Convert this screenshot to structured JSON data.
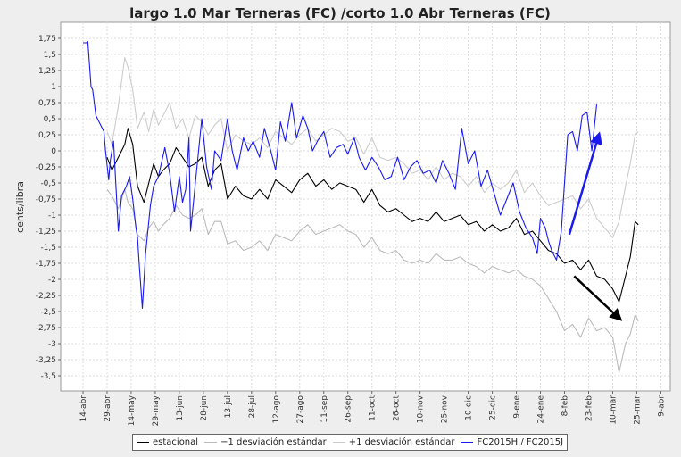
{
  "chart_data": {
    "type": "line",
    "title": "largo 1.0 Mar Terneras (FC) /corto 1.0 Abr Terneras (FC)",
    "xlabel": "",
    "ylabel": "cents/libra",
    "ylim": [
      -3.6,
      1.95
    ],
    "y_ticks": [
      1.75,
      1.5,
      1.25,
      1,
      0.75,
      0.5,
      0.25,
      0,
      -0.25,
      -0.5,
      -0.75,
      -1,
      -1.25,
      -1.5,
      -1.75,
      -2,
      -2.25,
      -2.5,
      -2.75,
      -3,
      -3.25,
      -3.5
    ],
    "y_tick_labels": [
      "1,75",
      "1,5",
      "1,25",
      "1",
      "0,75",
      "0,5",
      "0,25",
      "0",
      "-0,25",
      "-0,5",
      "-0,75",
      "-1",
      "-1,25",
      "-1,5",
      "-1,75",
      "-2",
      "-2,25",
      "-2,5",
      "-2,75",
      "-3",
      "-3,25",
      "-3,5"
    ],
    "xlim": [
      0,
      362
    ],
    "x_ticks": [
      {
        "label": "14-abr",
        "day": 0
      },
      {
        "label": "29-abr",
        "day": 15
      },
      {
        "label": "14-may",
        "day": 30
      },
      {
        "label": "29-may",
        "day": 45
      },
      {
        "label": "13-jun",
        "day": 60
      },
      {
        "label": "28-jun",
        "day": 75
      },
      {
        "label": "13-jul",
        "day": 90
      },
      {
        "label": "28-jul",
        "day": 105
      },
      {
        "label": "12-ago",
        "day": 120
      },
      {
        "label": "27-ago",
        "day": 135
      },
      {
        "label": "11-sep",
        "day": 150
      },
      {
        "label": "26-sep",
        "day": 165
      },
      {
        "label": "11-oct",
        "day": 180
      },
      {
        "label": "26-oct",
        "day": 195
      },
      {
        "label": "10-nov",
        "day": 210
      },
      {
        "label": "25-nov",
        "day": 225
      },
      {
        "label": "10-dic",
        "day": 240
      },
      {
        "label": "25-dic",
        "day": 255
      },
      {
        "label": "9-ene",
        "day": 270
      },
      {
        "label": "24-ene",
        "day": 285
      },
      {
        "label": "8-feb",
        "day": 300
      },
      {
        "label": "23-feb",
        "day": 315
      },
      {
        "label": "10-mar",
        "day": 330
      },
      {
        "label": "25-mar",
        "day": 345
      },
      {
        "label": "9-abr",
        "day": 360
      }
    ],
    "series": [
      {
        "name": "estacional",
        "color": "#000000",
        "x": [
          15,
          18,
          22,
          26,
          28,
          31,
          34,
          38,
          41,
          44,
          47,
          50,
          54,
          58,
          62,
          66,
          70,
          74,
          78,
          82,
          86,
          90,
          95,
          100,
          105,
          110,
          115,
          120,
          125,
          130,
          135,
          140,
          145,
          150,
          155,
          160,
          165,
          170,
          175,
          180,
          185,
          190,
          195,
          200,
          205,
          210,
          215,
          220,
          225,
          230,
          235,
          240,
          245,
          250,
          255,
          260,
          265,
          270,
          275,
          280,
          285,
          290,
          295,
          300,
          305,
          310,
          315,
          320,
          325,
          330,
          334,
          338,
          341,
          344,
          346
        ],
        "y": [
          -0.1,
          -0.3,
          -0.1,
          0.1,
          0.35,
          0.1,
          -0.55,
          -0.8,
          -0.5,
          -0.2,
          -0.4,
          -0.3,
          -0.2,
          0.05,
          -0.1,
          -0.25,
          -0.2,
          -0.1,
          -0.55,
          -0.3,
          -0.2,
          -0.75,
          -0.55,
          -0.7,
          -0.75,
          -0.6,
          -0.75,
          -0.45,
          -0.55,
          -0.65,
          -0.45,
          -0.35,
          -0.55,
          -0.45,
          -0.6,
          -0.5,
          -0.55,
          -0.6,
          -0.8,
          -0.6,
          -0.85,
          -0.95,
          -0.9,
          -1.0,
          -1.1,
          -1.05,
          -1.1,
          -0.95,
          -1.1,
          -1.05,
          -1.0,
          -1.15,
          -1.1,
          -1.25,
          -1.15,
          -1.25,
          -1.2,
          -1.05,
          -1.3,
          -1.25,
          -1.4,
          -1.55,
          -1.6,
          -1.75,
          -1.7,
          -1.85,
          -1.7,
          -1.95,
          -2.0,
          -2.15,
          -2.35,
          -1.95,
          -1.65,
          -1.1,
          -1.15
        ]
      },
      {
        "name": "−1 desviación estándar",
        "color": "#bbbbbb",
        "x": [
          15,
          18,
          22,
          26,
          28,
          31,
          34,
          38,
          41,
          44,
          47,
          50,
          54,
          58,
          62,
          66,
          70,
          74,
          78,
          82,
          86,
          90,
          95,
          100,
          105,
          110,
          115,
          120,
          125,
          130,
          135,
          140,
          145,
          150,
          155,
          160,
          165,
          170,
          175,
          180,
          185,
          190,
          195,
          200,
          205,
          210,
          215,
          220,
          225,
          230,
          235,
          240,
          245,
          250,
          255,
          260,
          265,
          270,
          275,
          280,
          285,
          290,
          295,
          300,
          305,
          310,
          315,
          320,
          325,
          330,
          334,
          338,
          341,
          344,
          346
        ],
        "y": [
          -0.6,
          -0.7,
          -0.9,
          -0.6,
          -0.8,
          -0.9,
          -1.3,
          -1.4,
          -1.2,
          -1.1,
          -1.25,
          -1.15,
          -1.05,
          -0.85,
          -1.0,
          -1.05,
          -1.0,
          -0.9,
          -1.3,
          -1.1,
          -1.1,
          -1.45,
          -1.4,
          -1.55,
          -1.5,
          -1.4,
          -1.55,
          -1.3,
          -1.35,
          -1.4,
          -1.25,
          -1.15,
          -1.3,
          -1.25,
          -1.2,
          -1.15,
          -1.25,
          -1.3,
          -1.5,
          -1.35,
          -1.55,
          -1.6,
          -1.55,
          -1.7,
          -1.75,
          -1.7,
          -1.75,
          -1.6,
          -1.7,
          -1.7,
          -1.65,
          -1.75,
          -1.8,
          -1.9,
          -1.8,
          -1.85,
          -1.9,
          -1.85,
          -1.95,
          -2.0,
          -2.1,
          -2.3,
          -2.5,
          -2.8,
          -2.7,
          -2.9,
          -2.6,
          -2.8,
          -2.75,
          -2.9,
          -3.45,
          -3.0,
          -2.85,
          -2.55,
          -2.65
        ]
      },
      {
        "name": "+1 desviación estándar",
        "color": "#cccccc",
        "x": [
          15,
          18,
          22,
          26,
          28,
          31,
          34,
          38,
          41,
          44,
          47,
          50,
          54,
          58,
          62,
          66,
          70,
          74,
          78,
          82,
          86,
          90,
          95,
          100,
          105,
          110,
          115,
          120,
          125,
          130,
          135,
          140,
          145,
          150,
          155,
          160,
          165,
          170,
          175,
          180,
          185,
          190,
          195,
          200,
          205,
          210,
          215,
          220,
          225,
          230,
          235,
          240,
          245,
          250,
          255,
          260,
          265,
          270,
          275,
          280,
          285,
          290,
          295,
          300,
          305,
          310,
          315,
          320,
          325,
          330,
          334,
          338,
          341,
          344,
          346
        ],
        "y": [
          0.3,
          0.1,
          0.7,
          1.45,
          1.3,
          0.95,
          0.35,
          0.6,
          0.3,
          0.65,
          0.4,
          0.55,
          0.75,
          0.35,
          0.5,
          0.2,
          0.55,
          0.45,
          0.25,
          0.4,
          0.5,
          0.0,
          0.25,
          0.15,
          0.1,
          0.2,
          0.05,
          0.3,
          0.2,
          0.1,
          0.25,
          0.35,
          0.15,
          0.25,
          0.35,
          0.3,
          0.15,
          0.2,
          -0.05,
          0.2,
          -0.1,
          -0.15,
          -0.1,
          -0.2,
          -0.35,
          -0.3,
          -0.45,
          -0.25,
          -0.45,
          -0.35,
          -0.4,
          -0.55,
          -0.4,
          -0.65,
          -0.5,
          -0.6,
          -0.5,
          -0.3,
          -0.65,
          -0.5,
          -0.7,
          -0.85,
          -0.8,
          -0.75,
          -0.7,
          -0.9,
          -0.75,
          -1.05,
          -1.2,
          -1.35,
          -1.1,
          -0.55,
          -0.2,
          0.25,
          0.3
        ]
      },
      {
        "name": "FC2015H / FC2015J",
        "color": "#1a1aee",
        "x": [
          0,
          2,
          3,
          5,
          6,
          8,
          10,
          13,
          14,
          16,
          17,
          19,
          22,
          24,
          27,
          29,
          31,
          33,
          34,
          35,
          37,
          39,
          42,
          44,
          47,
          51,
          54,
          57,
          60,
          62,
          64,
          66,
          67,
          70,
          74,
          77,
          80,
          82,
          86,
          90,
          93,
          96,
          100,
          103,
          106,
          110,
          113,
          117,
          120,
          123,
          126,
          130,
          133,
          137,
          140,
          143,
          146,
          150,
          154,
          158,
          162,
          165,
          169,
          172,
          176,
          180,
          184,
          188,
          192,
          196,
          200,
          204,
          208,
          212,
          216,
          220,
          224,
          228,
          232,
          236,
          240,
          244,
          248,
          252,
          256,
          260,
          264,
          268,
          272,
          276,
          280,
          283,
          285,
          288,
          290,
          292,
          295,
          298,
          302,
          305,
          308,
          311,
          314,
          317,
          320
        ],
        "y": [
          1.68,
          1.68,
          1.7,
          1.0,
          0.95,
          0.55,
          0.45,
          0.3,
          0.0,
          -0.45,
          -0.15,
          0.15,
          -1.25,
          -0.7,
          -0.55,
          -0.4,
          -0.75,
          -1.2,
          -1.35,
          -1.75,
          -2.45,
          -1.6,
          -0.85,
          -0.55,
          -0.4,
          0.05,
          -0.35,
          -0.95,
          -0.4,
          -0.8,
          -0.6,
          0.2,
          -1.25,
          -0.5,
          0.5,
          -0.25,
          -0.6,
          0.0,
          -0.15,
          0.5,
          0.0,
          -0.3,
          0.2,
          0.0,
          0.15,
          -0.1,
          0.35,
          0.0,
          -0.3,
          0.45,
          0.15,
          0.75,
          0.2,
          0.55,
          0.35,
          0.0,
          0.15,
          0.3,
          -0.1,
          0.05,
          0.1,
          -0.05,
          0.2,
          -0.1,
          -0.3,
          -0.1,
          -0.25,
          -0.45,
          -0.4,
          -0.1,
          -0.45,
          -0.25,
          -0.15,
          -0.35,
          -0.3,
          -0.5,
          -0.15,
          -0.35,
          -0.6,
          0.35,
          -0.2,
          0.0,
          -0.55,
          -0.3,
          -0.65,
          -1.0,
          -0.75,
          -0.5,
          -0.95,
          -1.2,
          -1.35,
          -1.6,
          -1.05,
          -1.2,
          -1.4,
          -1.55,
          -1.7,
          -1.25,
          0.25,
          0.3,
          0.0,
          0.55,
          0.6,
          0.0,
          0.72
        ]
      }
    ],
    "annotations": [
      {
        "type": "arrow",
        "color": "#1a1aee",
        "from": {
          "day": 303,
          "value": -1.3
        },
        "to": {
          "day": 322,
          "value": 0.3
        }
      },
      {
        "type": "arrow",
        "color": "#000000",
        "from": {
          "day": 306,
          "value": -1.95
        },
        "to": {
          "day": 336,
          "value": -2.65
        }
      }
    ],
    "legend": {
      "position": "bottom"
    }
  }
}
